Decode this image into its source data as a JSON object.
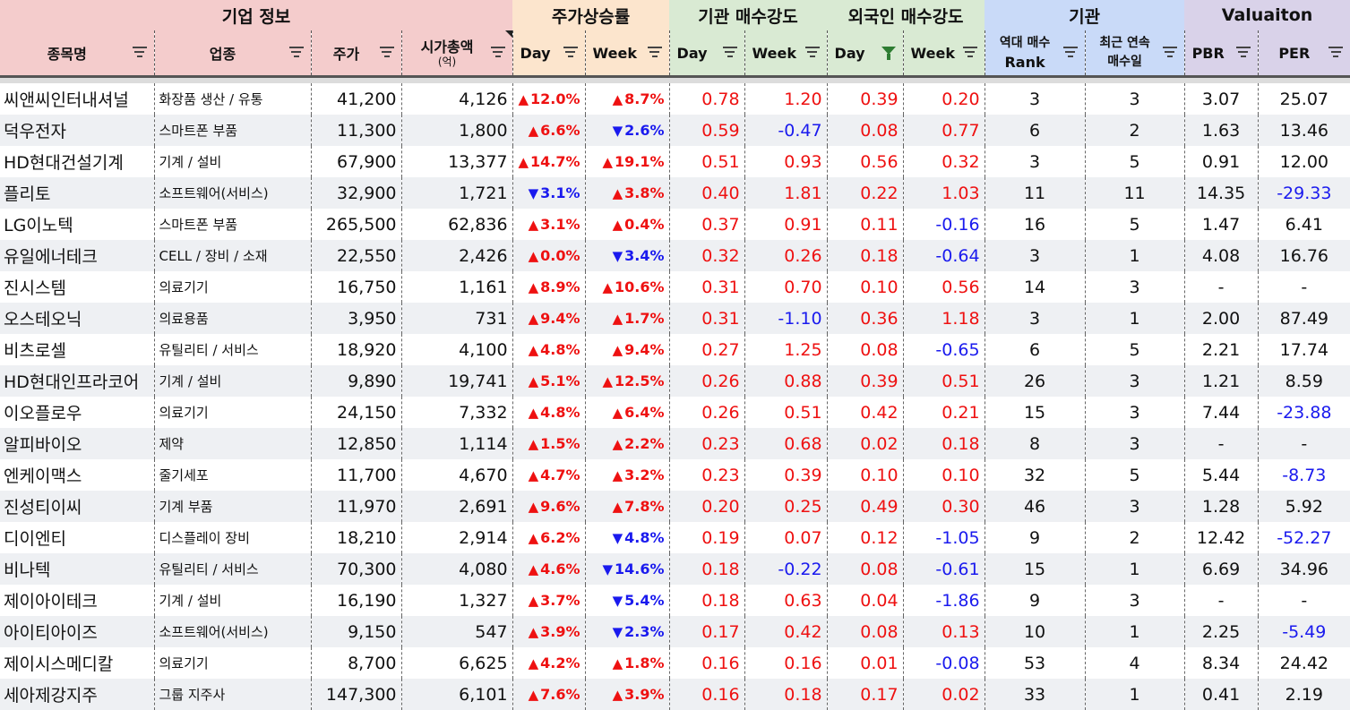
{
  "groups": {
    "company": "기업 정보",
    "price": "주가상승률",
    "inst": "기관 매수강도",
    "foreign": "외국인 매수강도",
    "inst2": "기관",
    "valuation": "Valuaiton"
  },
  "columns": {
    "name": "종목명",
    "sector": "업종",
    "price": "주가",
    "mcap": "시가총액",
    "mcap_unit": "(억)",
    "day": "Day",
    "week": "Week",
    "rank_1": "역대 매수",
    "rank_2": "Rank",
    "streak_1": "최근 연속",
    "streak_2": "매수일",
    "pbr": "PBR",
    "per": "PER"
  },
  "colors": {
    "up": "#ee1111",
    "down": "#1a1aee",
    "filter_active": "#2e7d32"
  },
  "rows": [
    {
      "name": "씨앤씨인터내셔널",
      "sector": "화장품 생산 / 유통",
      "price": "41,200",
      "mcap": "4,126",
      "day_dir": "up",
      "day": "12.0%",
      "week_dir": "up",
      "week": "8.7%",
      "inst_day": "0.78",
      "inst_week": "1.20",
      "for_day": "0.39",
      "for_week": "0.20",
      "rank": "3",
      "streak": "3",
      "pbr": "3.07",
      "per": "25.07"
    },
    {
      "name": "덕우전자",
      "sector": "스마트폰 부품",
      "price": "11,300",
      "mcap": "1,800",
      "day_dir": "up",
      "day": "6.6%",
      "week_dir": "down",
      "week": "2.6%",
      "inst_day": "0.59",
      "inst_week": "-0.47",
      "for_day": "0.08",
      "for_week": "0.77",
      "rank": "6",
      "streak": "2",
      "pbr": "1.63",
      "per": "13.46"
    },
    {
      "name": "HD현대건설기계",
      "sector": "기계 / 설비",
      "price": "67,900",
      "mcap": "13,377",
      "day_dir": "up",
      "day": "14.7%",
      "week_dir": "up",
      "week": "19.1%",
      "inst_day": "0.51",
      "inst_week": "0.93",
      "for_day": "0.56",
      "for_week": "0.32",
      "rank": "3",
      "streak": "5",
      "pbr": "0.91",
      "per": "12.00"
    },
    {
      "name": "플리토",
      "sector": "소프트웨어(서비스)",
      "price": "32,900",
      "mcap": "1,721",
      "day_dir": "down",
      "day": "3.1%",
      "week_dir": "up",
      "week": "3.8%",
      "inst_day": "0.40",
      "inst_week": "1.81",
      "for_day": "0.22",
      "for_week": "1.03",
      "rank": "11",
      "streak": "11",
      "pbr": "14.35",
      "per": "-29.33"
    },
    {
      "name": "LG이노텍",
      "sector": "스마트폰 부품",
      "price": "265,500",
      "mcap": "62,836",
      "day_dir": "up",
      "day": "3.1%",
      "week_dir": "up",
      "week": "0.4%",
      "inst_day": "0.37",
      "inst_week": "0.91",
      "for_day": "0.11",
      "for_week": "-0.16",
      "rank": "16",
      "streak": "5",
      "pbr": "1.47",
      "per": "6.41"
    },
    {
      "name": "유일에너테크",
      "sector": "CELL / 장비 / 소재",
      "price": "22,550",
      "mcap": "2,426",
      "day_dir": "up",
      "day": "0.0%",
      "week_dir": "down",
      "week": "3.4%",
      "inst_day": "0.32",
      "inst_week": "0.26",
      "for_day": "0.18",
      "for_week": "-0.64",
      "rank": "3",
      "streak": "1",
      "pbr": "4.08",
      "per": "16.76"
    },
    {
      "name": "진시스템",
      "sector": "의료기기",
      "price": "16,750",
      "mcap": "1,161",
      "day_dir": "up",
      "day": "8.9%",
      "week_dir": "up",
      "week": "10.6%",
      "inst_day": "0.31",
      "inst_week": "0.70",
      "for_day": "0.10",
      "for_week": "0.56",
      "rank": "14",
      "streak": "3",
      "pbr": "-",
      "per": "-"
    },
    {
      "name": "오스테오닉",
      "sector": "의료용품",
      "price": "3,950",
      "mcap": "731",
      "day_dir": "up",
      "day": "9.4%",
      "week_dir": "up",
      "week": "1.7%",
      "inst_day": "0.31",
      "inst_week": "-1.10",
      "for_day": "0.36",
      "for_week": "1.18",
      "rank": "3",
      "streak": "1",
      "pbr": "2.00",
      "per": "87.49"
    },
    {
      "name": "비츠로셀",
      "sector": "유틸리티 / 서비스",
      "price": "18,920",
      "mcap": "4,100",
      "day_dir": "up",
      "day": "4.8%",
      "week_dir": "up",
      "week": "9.4%",
      "inst_day": "0.27",
      "inst_week": "1.25",
      "for_day": "0.08",
      "for_week": "-0.65",
      "rank": "6",
      "streak": "5",
      "pbr": "2.21",
      "per": "17.74"
    },
    {
      "name": "HD현대인프라코어",
      "sector": "기계 / 설비",
      "price": "9,890",
      "mcap": "19,741",
      "day_dir": "up",
      "day": "5.1%",
      "week_dir": "up",
      "week": "12.5%",
      "inst_day": "0.26",
      "inst_week": "0.88",
      "for_day": "0.39",
      "for_week": "0.51",
      "rank": "26",
      "streak": "3",
      "pbr": "1.21",
      "per": "8.59"
    },
    {
      "name": "이오플로우",
      "sector": "의료기기",
      "price": "24,150",
      "mcap": "7,332",
      "day_dir": "up",
      "day": "4.8%",
      "week_dir": "up",
      "week": "6.4%",
      "inst_day": "0.26",
      "inst_week": "0.51",
      "for_day": "0.42",
      "for_week": "0.21",
      "rank": "15",
      "streak": "3",
      "pbr": "7.44",
      "per": "-23.88"
    },
    {
      "name": "알피바이오",
      "sector": "제약",
      "price": "12,850",
      "mcap": "1,114",
      "day_dir": "up",
      "day": "1.5%",
      "week_dir": "up",
      "week": "2.2%",
      "inst_day": "0.23",
      "inst_week": "0.68",
      "for_day": "0.02",
      "for_week": "0.18",
      "rank": "8",
      "streak": "3",
      "pbr": "-",
      "per": "-"
    },
    {
      "name": "엔케이맥스",
      "sector": "줄기세포",
      "price": "11,700",
      "mcap": "4,670",
      "day_dir": "up",
      "day": "4.7%",
      "week_dir": "up",
      "week": "3.2%",
      "inst_day": "0.23",
      "inst_week": "0.39",
      "for_day": "0.10",
      "for_week": "0.10",
      "rank": "32",
      "streak": "5",
      "pbr": "5.44",
      "per": "-8.73"
    },
    {
      "name": "진성티이씨",
      "sector": "기계 부품",
      "price": "11,970",
      "mcap": "2,691",
      "day_dir": "up",
      "day": "9.6%",
      "week_dir": "up",
      "week": "7.8%",
      "inst_day": "0.20",
      "inst_week": "0.25",
      "for_day": "0.49",
      "for_week": "0.30",
      "rank": "46",
      "streak": "3",
      "pbr": "1.28",
      "per": "5.92"
    },
    {
      "name": "디이엔티",
      "sector": "디스플레이 장비",
      "price": "18,210",
      "mcap": "2,914",
      "day_dir": "up",
      "day": "6.2%",
      "week_dir": "down",
      "week": "4.8%",
      "inst_day": "0.19",
      "inst_week": "0.07",
      "for_day": "0.12",
      "for_week": "-1.05",
      "rank": "9",
      "streak": "2",
      "pbr": "12.42",
      "per": "-52.27"
    },
    {
      "name": "비나텍",
      "sector": "유틸리티 / 서비스",
      "price": "70,300",
      "mcap": "4,080",
      "day_dir": "up",
      "day": "4.6%",
      "week_dir": "down",
      "week": "14.6%",
      "inst_day": "0.18",
      "inst_week": "-0.22",
      "for_day": "0.08",
      "for_week": "-0.61",
      "rank": "15",
      "streak": "1",
      "pbr": "6.69",
      "per": "34.96"
    },
    {
      "name": "제이아이테크",
      "sector": "기계 / 설비",
      "price": "16,190",
      "mcap": "1,327",
      "day_dir": "up",
      "day": "3.7%",
      "week_dir": "down",
      "week": "5.4%",
      "inst_day": "0.18",
      "inst_week": "0.63",
      "for_day": "0.04",
      "for_week": "-1.86",
      "rank": "9",
      "streak": "3",
      "pbr": "-",
      "per": "-"
    },
    {
      "name": "아이티아이즈",
      "sector": "소프트웨어(서비스)",
      "price": "9,150",
      "mcap": "547",
      "day_dir": "up",
      "day": "3.9%",
      "week_dir": "down",
      "week": "2.3%",
      "inst_day": "0.17",
      "inst_week": "0.42",
      "for_day": "0.08",
      "for_week": "0.13",
      "rank": "10",
      "streak": "1",
      "pbr": "2.25",
      "per": "-5.49"
    },
    {
      "name": "제이시스메디칼",
      "sector": "의료기기",
      "price": "8,700",
      "mcap": "6,625",
      "day_dir": "up",
      "day": "4.2%",
      "week_dir": "up",
      "week": "1.8%",
      "inst_day": "0.16",
      "inst_week": "0.16",
      "for_day": "0.01",
      "for_week": "-0.08",
      "rank": "53",
      "streak": "4",
      "pbr": "8.34",
      "per": "24.42"
    },
    {
      "name": "세아제강지주",
      "sector": "그룹 지주사",
      "price": "147,300",
      "mcap": "6,101",
      "day_dir": "up",
      "day": "7.6%",
      "week_dir": "up",
      "week": "3.9%",
      "inst_day": "0.16",
      "inst_week": "0.18",
      "for_day": "0.17",
      "for_week": "0.02",
      "rank": "33",
      "streak": "1",
      "pbr": "0.41",
      "per": "2.19"
    }
  ]
}
